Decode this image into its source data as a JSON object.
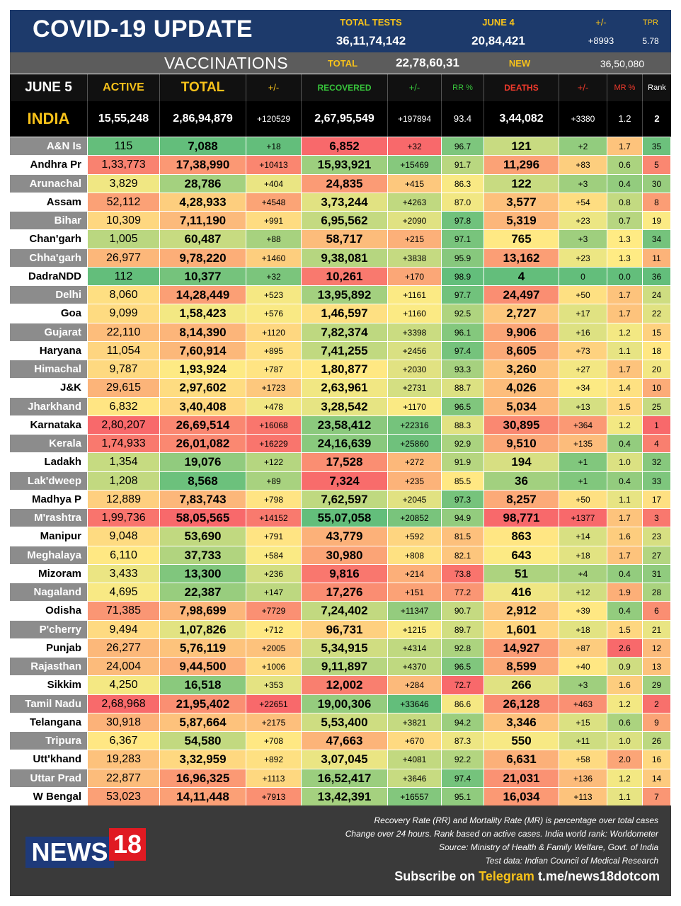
{
  "header": {
    "title": "COVID-19 UPDATE",
    "total_tests_label": "TOTAL TESTS",
    "total_tests": "36,11,74,142",
    "date_label": "JUNE 4",
    "date_tests": "20,84,421",
    "change_label": "+/-",
    "change": "+8993",
    "tpr_label": "TPR",
    "tpr": "5.78"
  },
  "vaccinations": {
    "label": "VACCINATIONS",
    "total_label": "TOTAL",
    "total": "22,78,60,31",
    "new_label": "NEW",
    "new": "36,50,080"
  },
  "columns": {
    "date": "JUNE 5",
    "active": "ACTIVE",
    "total": "TOTAL",
    "total_change": "+/-",
    "recovered": "RECOVERED",
    "rec_change": "+/-",
    "rr": "RR %",
    "deaths": "DEATHS",
    "death_change": "+/-",
    "mr": "MR %",
    "rank": "Rank"
  },
  "india": {
    "name": "INDIA",
    "active": "15,55,248",
    "total": "2,86,94,879",
    "total_change": "+120529",
    "recovered": "2,67,95,549",
    "rec_change": "+197894",
    "rr": "93.4",
    "deaths": "3,44,082",
    "death_change": "+3380",
    "mr": "1.2",
    "rank": "2"
  },
  "rows": [
    [
      "A&N Is",
      "115",
      "7,088",
      "+18",
      "6,852",
      "+32",
      "96.7",
      "121",
      "+2",
      "1.7",
      "35"
    ],
    [
      "Andhra Pr",
      "1,33,773",
      "17,38,990",
      "+10413",
      "15,93,921",
      "+15469",
      "91.7",
      "11,296",
      "+83",
      "0.6",
      "5"
    ],
    [
      "Arunachal",
      "3,829",
      "28,786",
      "+404",
      "24,835",
      "+415",
      "86.3",
      "122",
      "+3",
      "0.4",
      "30"
    ],
    [
      "Assam",
      "52,112",
      "4,28,933",
      "+4548",
      "3,73,244",
      "+4263",
      "87.0",
      "3,577",
      "+54",
      "0.8",
      "8"
    ],
    [
      "Bihar",
      "10,309",
      "7,11,190",
      "+991",
      "6,95,562",
      "+2090",
      "97.8",
      "5,319",
      "+23",
      "0.7",
      "19"
    ],
    [
      "Chan'garh",
      "1,005",
      "60,487",
      "+88",
      "58,717",
      "+215",
      "97.1",
      "765",
      "+3",
      "1.3",
      "34"
    ],
    [
      "Chha'garh",
      "26,977",
      "9,78,220",
      "+1460",
      "9,38,081",
      "+3838",
      "95.9",
      "13,162",
      "+23",
      "1.3",
      "11"
    ],
    [
      "DadraNDD",
      "112",
      "10,377",
      "+32",
      "10,261",
      "+170",
      "98.9",
      "4",
      "0",
      "0.0",
      "36"
    ],
    [
      "Delhi",
      "8,060",
      "14,28,449",
      "+523",
      "13,95,892",
      "+1161",
      "97.7",
      "24,497",
      "+50",
      "1.7",
      "24"
    ],
    [
      "Goa",
      "9,099",
      "1,58,423",
      "+576",
      "1,46,597",
      "+1160",
      "92.5",
      "2,727",
      "+17",
      "1.7",
      "22"
    ],
    [
      "Gujarat",
      "22,110",
      "8,14,390",
      "+1120",
      "7,82,374",
      "+3398",
      "96.1",
      "9,906",
      "+16",
      "1.2",
      "15"
    ],
    [
      "Haryana",
      "11,054",
      "7,60,914",
      "+895",
      "7,41,255",
      "+2456",
      "97.4",
      "8,605",
      "+73",
      "1.1",
      "18"
    ],
    [
      "Himachal",
      "9,787",
      "1,93,924",
      "+787",
      "1,80,877",
      "+2030",
      "93.3",
      "3,260",
      "+27",
      "1.7",
      "20"
    ],
    [
      "J&K",
      "29,615",
      "2,97,602",
      "+1723",
      "2,63,961",
      "+2731",
      "88.7",
      "4,026",
      "+34",
      "1.4",
      "10"
    ],
    [
      "Jharkhand",
      "6,832",
      "3,40,408",
      "+478",
      "3,28,542",
      "+1170",
      "96.5",
      "5,034",
      "+13",
      "1.5",
      "25"
    ],
    [
      "Karnataka",
      "2,80,207",
      "26,69,514",
      "+16068",
      "23,58,412",
      "+22316",
      "88.3",
      "30,895",
      "+364",
      "1.2",
      "1"
    ],
    [
      "Kerala",
      "1,74,933",
      "26,01,082",
      "+16229",
      "24,16,639",
      "+25860",
      "92.9",
      "9,510",
      "+135",
      "0.4",
      "4"
    ],
    [
      "Ladakh",
      "1,354",
      "19,076",
      "+122",
      "17,528",
      "+272",
      "91.9",
      "194",
      "+1",
      "1.0",
      "32"
    ],
    [
      "Lak'dweep",
      "1,208",
      "8,568",
      "+89",
      "7,324",
      "+235",
      "85.5",
      "36",
      "+1",
      "0.4",
      "33"
    ],
    [
      "Madhya P",
      "12,889",
      "7,83,743",
      "+798",
      "7,62,597",
      "+2045",
      "97.3",
      "8,257",
      "+50",
      "1.1",
      "17"
    ],
    [
      "M'rashtra",
      "1,99,736",
      "58,05,565",
      "+14152",
      "55,07,058",
      "+20852",
      "94.9",
      "98,771",
      "+1377",
      "1.7",
      "3"
    ],
    [
      "Manipur",
      "9,048",
      "53,690",
      "+791",
      "43,779",
      "+592",
      "81.5",
      "863",
      "+14",
      "1.6",
      "23"
    ],
    [
      "Meghalaya",
      "6,110",
      "37,733",
      "+584",
      "30,980",
      "+808",
      "82.1",
      "643",
      "+18",
      "1.7",
      "27"
    ],
    [
      "Mizoram",
      "3,433",
      "13,300",
      "+236",
      "9,816",
      "+214",
      "73.8",
      "51",
      "+4",
      "0.4",
      "31"
    ],
    [
      "Nagaland",
      "4,695",
      "22,387",
      "+147",
      "17,276",
      "+151",
      "77.2",
      "416",
      "+12",
      "1.9",
      "28"
    ],
    [
      "Odisha",
      "71,385",
      "7,98,699",
      "+7729",
      "7,24,402",
      "+11347",
      "90.7",
      "2,912",
      "+39",
      "0.4",
      "6"
    ],
    [
      "P'cherry",
      "9,494",
      "1,07,826",
      "+712",
      "96,731",
      "+1215",
      "89.7",
      "1,601",
      "+18",
      "1.5",
      "21"
    ],
    [
      "Punjab",
      "26,277",
      "5,76,119",
      "+2005",
      "5,34,915",
      "+4314",
      "92.8",
      "14,927",
      "+87",
      "2.6",
      "12"
    ],
    [
      "Rajasthan",
      "24,004",
      "9,44,500",
      "+1006",
      "9,11,897",
      "+4370",
      "96.5",
      "8,599",
      "+40",
      "0.9",
      "13"
    ],
    [
      "Sikkim",
      "4,250",
      "16,518",
      "+353",
      "12,002",
      "+284",
      "72.7",
      "266",
      "+3",
      "1.6",
      "29"
    ],
    [
      "Tamil Nadu",
      "2,68,968",
      "21,95,402",
      "+22651",
      "19,00,306",
      "+33646",
      "86.6",
      "26,128",
      "+463",
      "1.2",
      "2"
    ],
    [
      "Telangana",
      "30,918",
      "5,87,664",
      "+2175",
      "5,53,400",
      "+3821",
      "94.2",
      "3,346",
      "+15",
      "0.6",
      "9"
    ],
    [
      "Tripura",
      "6,367",
      "54,580",
      "+708",
      "47,663",
      "+670",
      "87.3",
      "550",
      "+11",
      "1.0",
      "26"
    ],
    [
      "Utt'khand",
      "19,283",
      "3,32,959",
      "+892",
      "3,07,045",
      "+4081",
      "92.2",
      "6,631",
      "+58",
      "2.0",
      "16"
    ],
    [
      "Uttar Prad",
      "22,877",
      "16,96,325",
      "+1113",
      "16,52,417",
      "+3646",
      "97.4",
      "21,031",
      "+136",
      "1.2",
      "14"
    ],
    [
      "W Bengal",
      "53,023",
      "14,11,448",
      "+7913",
      "13,42,391",
      "+16557",
      "95.1",
      "16,034",
      "+113",
      "1.1",
      "7"
    ]
  ],
  "footer": {
    "logo_news": "NEWS",
    "logo_num": "18",
    "note1": "Recovery Rate (RR) and Mortality Rate (MR) is percentage over total cases",
    "note2": "Change over 24 hours. Rank based on active cases. India world rank: Worldometer",
    "note3": "Source: Ministry of Health & Family Welfare, Govt. of India",
    "note4": "Test data: Indian Council of Medical Research",
    "subscribe": "Subscribe on",
    "telegram": "Telegram",
    "link": "t.me/news18dotcom"
  },
  "colors": {
    "header_blue": "#1d3a6b",
    "accent_yellow": "#f7c21a",
    "recovered_green": "#37c43b",
    "deaths_red": "#ef3a2c",
    "rank_low": "#f46a5e",
    "rank_high": "#5cbf6a"
  }
}
